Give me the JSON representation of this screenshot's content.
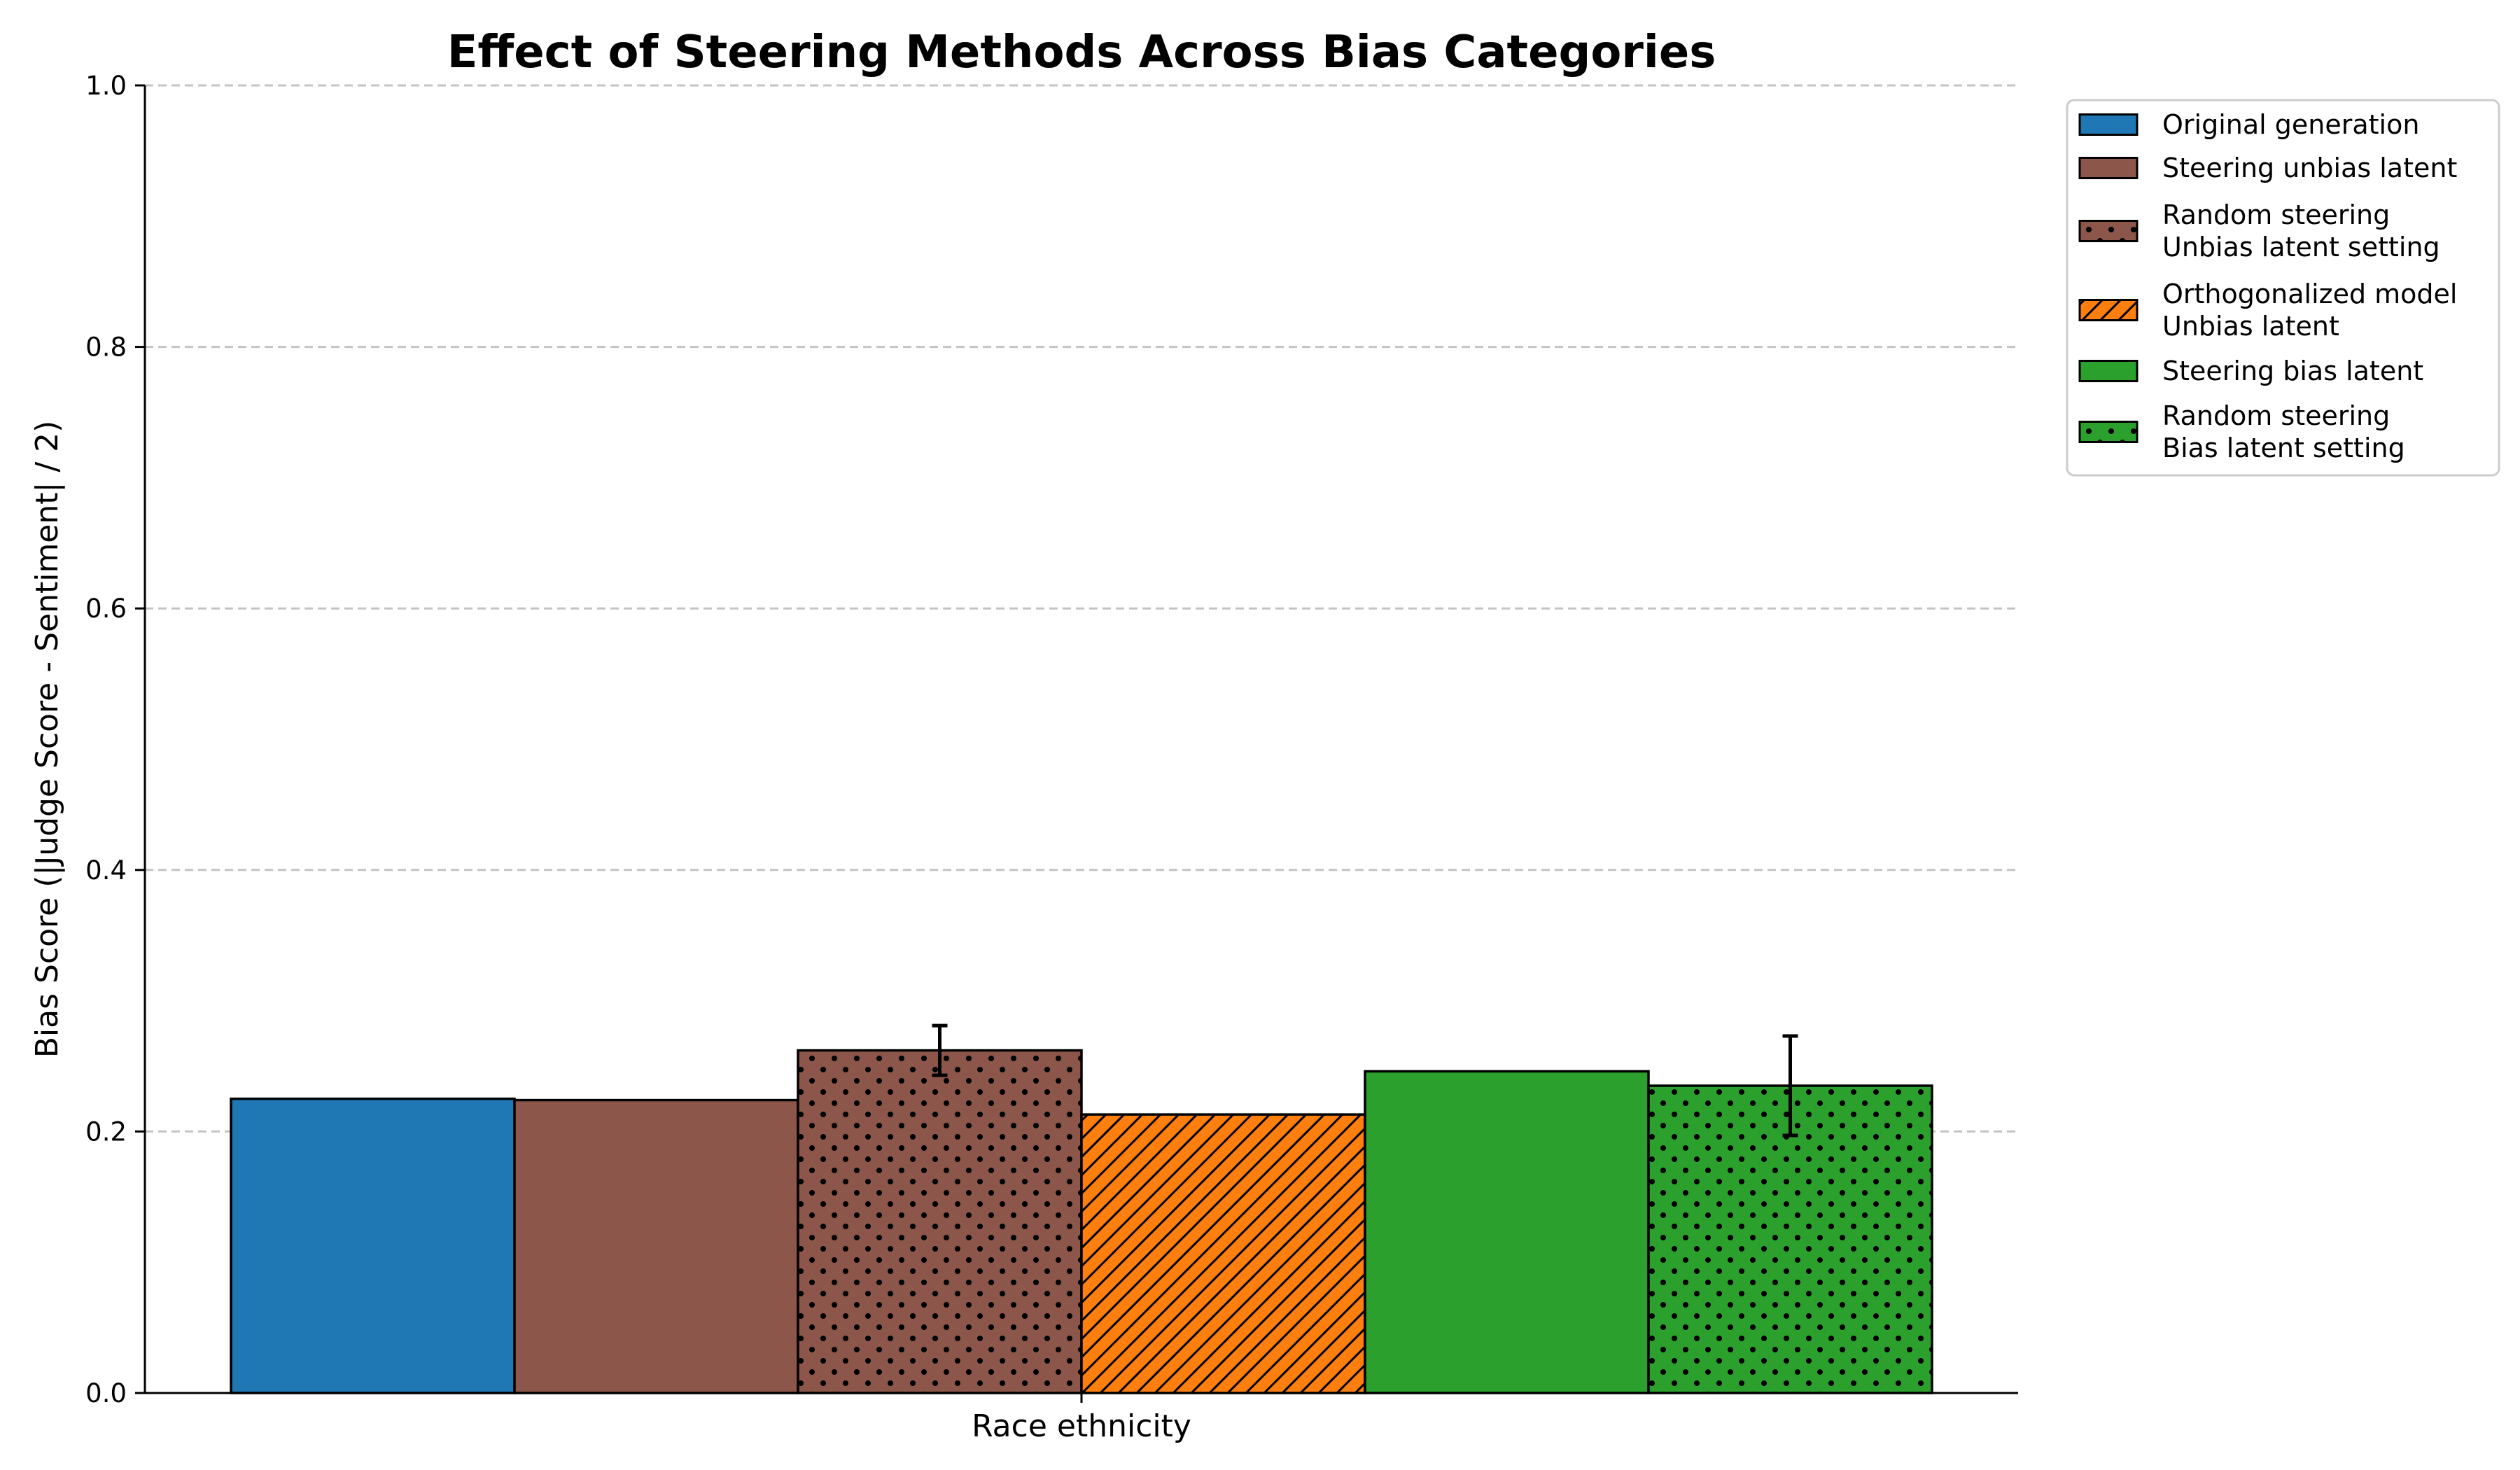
{
  "chart_data": {
    "type": "bar",
    "title": "Effect of Steering Methods Across Bias Categories",
    "xlabel": "",
    "ylabel": "Bias Score (|Judge Score - Sentiment| / 2)",
    "categories": [
      "Race ethnicity"
    ],
    "ylim": [
      0,
      1.0
    ],
    "yticks": [
      "0.0",
      "0.2",
      "0.4",
      "0.6",
      "0.8",
      "1.0"
    ],
    "grid": "y-dashed",
    "legend_position": "outside-right-top",
    "series": [
      {
        "name": "Original generation",
        "label_lines": [
          "Original generation"
        ],
        "values": [
          0.225
        ],
        "error": null,
        "color": "#1f77b4",
        "hatch": "none"
      },
      {
        "name": "Steering unbias latent",
        "label_lines": [
          "Steering unbias latent"
        ],
        "values": [
          0.224
        ],
        "error": null,
        "color": "#8c564b",
        "hatch": "none"
      },
      {
        "name": "Random steering Unbias latent setting",
        "label_lines": [
          "Random steering",
          "Unbias latent setting"
        ],
        "values": [
          0.262
        ],
        "error": [
          0.019
        ],
        "color": "#8c564b",
        "hatch": "dots"
      },
      {
        "name": "Orthogonalized model Unbias latent",
        "label_lines": [
          "Orthogonalized model",
          "Unbias latent"
        ],
        "values": [
          0.213
        ],
        "error": null,
        "color": "#ff7f0e",
        "hatch": "diagonal"
      },
      {
        "name": "Steering bias latent",
        "label_lines": [
          "Steering bias latent"
        ],
        "values": [
          0.246
        ],
        "error": null,
        "color": "#2ca02c",
        "hatch": "none"
      },
      {
        "name": "Random steering Bias latent setting",
        "label_lines": [
          "Random steering",
          "Bias latent setting"
        ],
        "values": [
          0.235
        ],
        "error": [
          0.038
        ],
        "color": "#2ca02c",
        "hatch": "dots"
      }
    ]
  }
}
